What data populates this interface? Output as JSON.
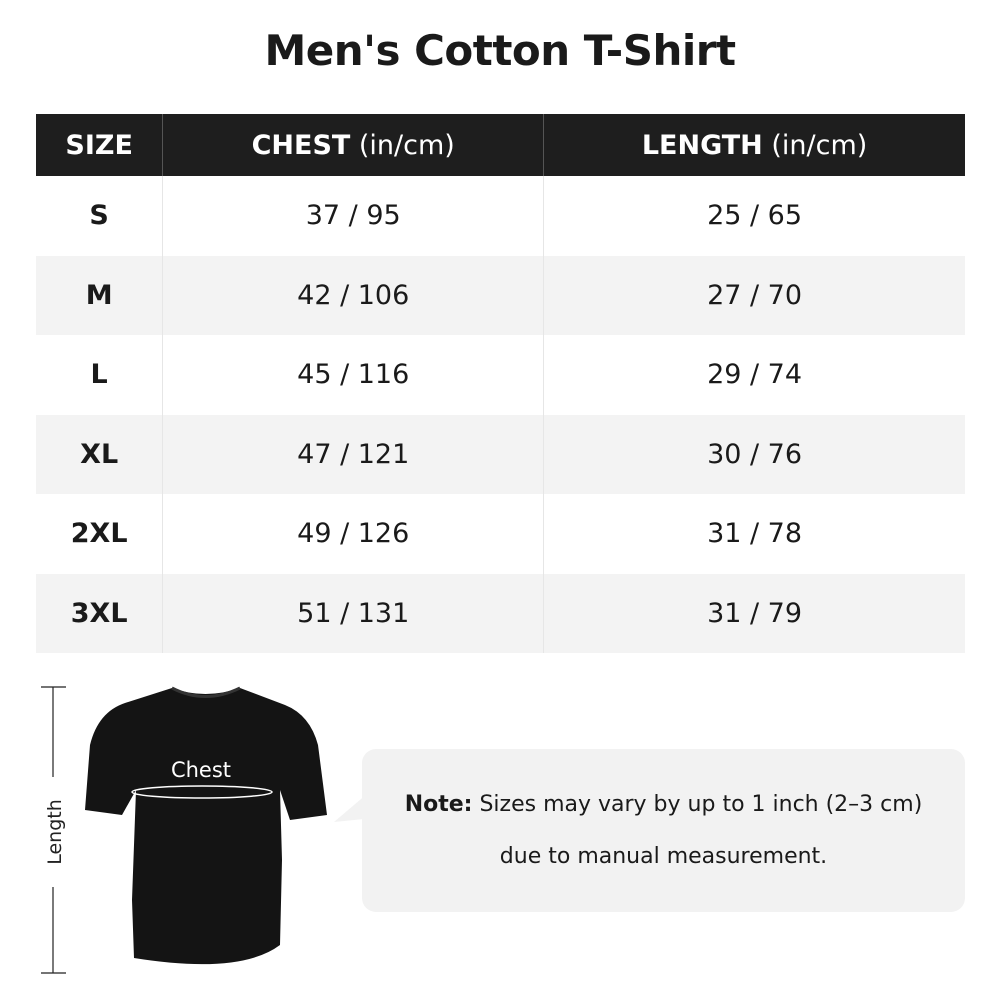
{
  "title": "Men's Cotton T-Shirt",
  "table": {
    "headers": [
      {
        "main": "SIZE",
        "unit": ""
      },
      {
        "main": "CHEST",
        "unit": " (in/cm)"
      },
      {
        "main": "LENGTH",
        "unit": " (in/cm)"
      }
    ],
    "rows": [
      [
        "S",
        "37 / 95",
        "25 / 65"
      ],
      [
        "M",
        "42 / 106",
        "27 / 70"
      ],
      [
        "L",
        "45 / 116",
        "29 / 74"
      ],
      [
        "XL",
        "47 / 121",
        "30 / 76"
      ],
      [
        "2XL",
        "49 / 126",
        "31 / 78"
      ],
      [
        "3XL",
        "51 / 131",
        "31 / 79"
      ]
    ]
  },
  "diagram": {
    "chest_label": "Chest",
    "length_label": "Length"
  },
  "note": {
    "label": "Note:",
    "line1": " Sizes may vary by up to 1 inch (2–3 cm)",
    "line2": "due to manual measurement."
  },
  "colors": {
    "header_bg": "#1e1e1e",
    "stripe": "#f3f3f3",
    "note_bg": "#f2f2f2"
  }
}
